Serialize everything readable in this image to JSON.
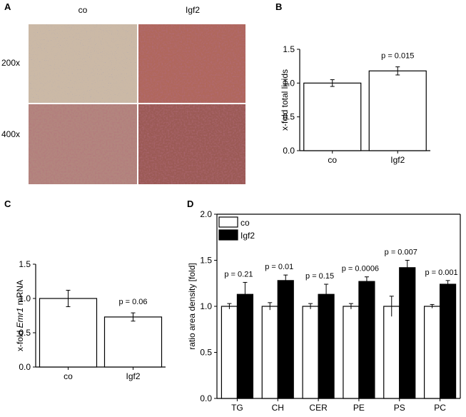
{
  "panels": {
    "A": {
      "label": "A",
      "col_labels": [
        "co",
        "Igf2"
      ],
      "row_labels": [
        "200x",
        "400x"
      ],
      "tissue_colors": {
        "co_200x": "#cbb9a6",
        "igf2_200x": "#b0675c",
        "co_400x": "#b3867e",
        "igf2_400x": "#9b5a55",
        "nuclei": "#4a5a95"
      }
    },
    "B": {
      "label": "B"
    },
    "C": {
      "label": "C"
    },
    "D": {
      "label": "D"
    }
  },
  "chart_data": [
    {
      "panel": "B",
      "type": "bar",
      "categories": [
        "co",
        "Igf2"
      ],
      "values": [
        1.0,
        1.18
      ],
      "errors": [
        0.05,
        0.06
      ],
      "ylabel": "x-fold total lipids",
      "ylim": [
        0.0,
        1.5
      ],
      "yticks": [
        "0.0",
        "0.5",
        "1.0",
        "1.5"
      ],
      "annotations": [
        "p = 0.015"
      ],
      "bar_colors": [
        "#ffffff",
        "#ffffff"
      ]
    },
    {
      "panel": "C",
      "type": "bar",
      "categories": [
        "co",
        "Igf2"
      ],
      "values": [
        1.0,
        0.73
      ],
      "errors": [
        0.12,
        0.06
      ],
      "ylabel_prefix": "x-fold ",
      "ylabel_italic": "Emr1",
      "ylabel_suffix": " mRNA",
      "ylim": [
        0.0,
        1.5
      ],
      "yticks": [
        "0.0",
        "0.5",
        "1.0",
        "1.5"
      ],
      "annotations": [
        "p = 0.06"
      ],
      "bar_colors": [
        "#ffffff",
        "#ffffff"
      ]
    },
    {
      "panel": "D",
      "type": "bar",
      "categories": [
        "TG",
        "CH",
        "CER",
        "PE",
        "PS",
        "PC"
      ],
      "series": [
        {
          "name": "co",
          "values": [
            1.0,
            1.0,
            1.0,
            1.0,
            1.0,
            1.0
          ],
          "errors": [
            0.03,
            0.04,
            0.03,
            0.03,
            0.11,
            0.02
          ],
          "color": "#ffffff"
        },
        {
          "name": "Igf2",
          "values": [
            1.13,
            1.28,
            1.13,
            1.27,
            1.42,
            1.24
          ],
          "errors": [
            0.13,
            0.06,
            0.11,
            0.05,
            0.08,
            0.04
          ],
          "color": "#000000"
        }
      ],
      "ylabel": "ratio area density [fold]",
      "ylim": [
        0.0,
        2.0
      ],
      "yticks": [
        "0.0",
        "0.5",
        "1.0",
        "1.5",
        "2.0"
      ],
      "annotations": [
        "p = 0.21",
        "p = 0.01",
        "p = 0.15",
        "p = 0.0006",
        "p = 0.007",
        "p = 0.001"
      ],
      "legend": "top-left"
    }
  ]
}
